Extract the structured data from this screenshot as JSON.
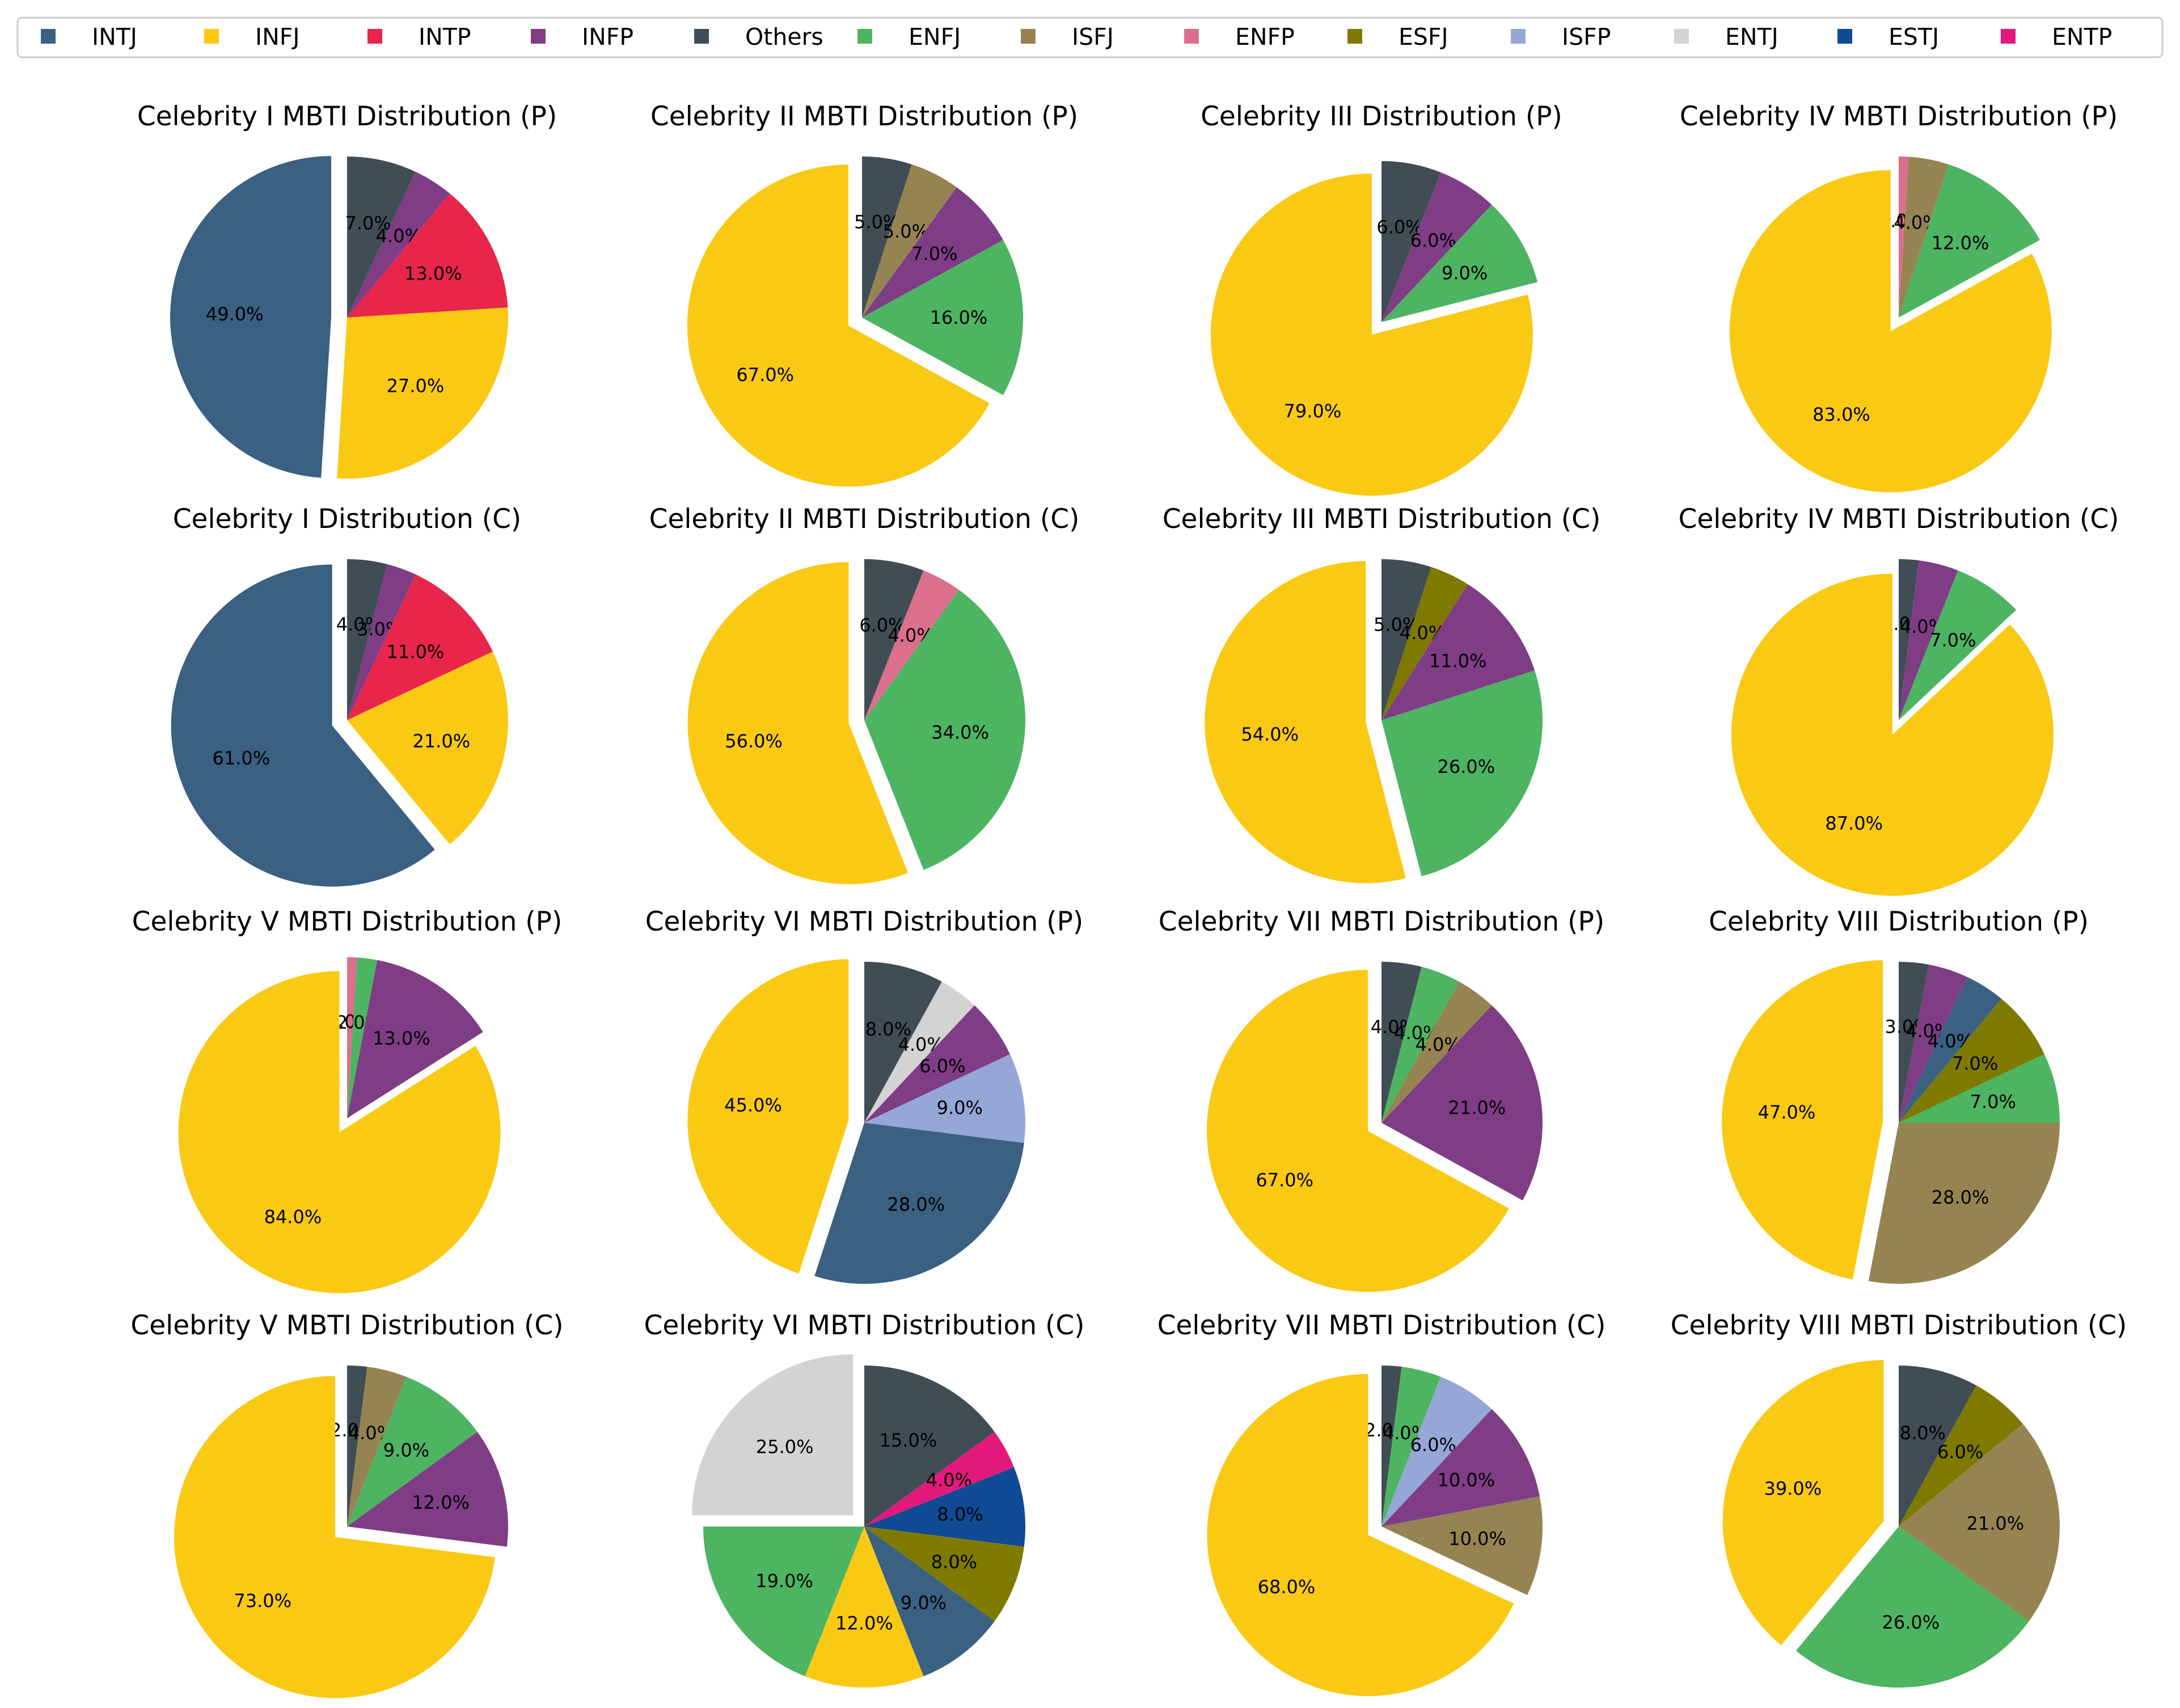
{
  "legend": [
    {
      "label": "INTJ",
      "color": "#3a6082"
    },
    {
      "label": "INFJ",
      "color": "#f9c914"
    },
    {
      "label": "INTP",
      "color": "#e8254a"
    },
    {
      "label": "INFP",
      "color": "#7f3d86"
    },
    {
      "label": "Others",
      "color": "#414d55"
    },
    {
      "label": "ENFJ",
      "color": "#4db462"
    },
    {
      "label": "ISFJ",
      "color": "#958451"
    },
    {
      "label": "ENFP",
      "color": "#db6f8c"
    },
    {
      "label": "ESFJ",
      "color": "#7e7a00"
    },
    {
      "label": "ISFP",
      "color": "#94a7d6"
    },
    {
      "label": "ENTJ",
      "color": "#d3d3d3"
    },
    {
      "label": "ESTJ",
      "color": "#0f4a94"
    },
    {
      "label": "ENTP",
      "color": "#e3197b"
    }
  ],
  "chart_data": [
    {
      "type": "pie",
      "title": "Celebrity I MBTI Distribution (P)",
      "explode": "INTJ",
      "slices": [
        {
          "label": "Others",
          "value": 7.0
        },
        {
          "label": "INFP",
          "value": 4.0
        },
        {
          "label": "INTP",
          "value": 13.0
        },
        {
          "label": "INFJ",
          "value": 27.0
        },
        {
          "label": "INTJ",
          "value": 49.0
        }
      ]
    },
    {
      "type": "pie",
      "title": "Celebrity II MBTI Distribution (P)",
      "explode": "INFJ",
      "slices": [
        {
          "label": "Others",
          "value": 5.0
        },
        {
          "label": "ISFJ",
          "value": 5.0
        },
        {
          "label": "INFP",
          "value": 7.0
        },
        {
          "label": "ENFJ",
          "value": 16.0
        },
        {
          "label": "INFJ",
          "value": 67.0
        }
      ]
    },
    {
      "type": "pie",
      "title": "Celebrity III Distribution (P)",
      "explode": "INFJ",
      "slices": [
        {
          "label": "Others",
          "value": 6.0
        },
        {
          "label": "INFP",
          "value": 6.0
        },
        {
          "label": "ENFJ",
          "value": 9.0
        },
        {
          "label": "INFJ",
          "value": 79.0
        }
      ]
    },
    {
      "type": "pie",
      "title": "Celebrity IV MBTI Distribution (P)",
      "explode": "INFJ",
      "slices": [
        {
          "label": "ENFP",
          "value": 1.0
        },
        {
          "label": "ISFJ",
          "value": 4.0
        },
        {
          "label": "ENFJ",
          "value": 12.0
        },
        {
          "label": "INFJ",
          "value": 83.0
        }
      ]
    },
    {
      "type": "pie",
      "title": "Celebrity I Distribution (C)",
      "explode": "INTJ",
      "slices": [
        {
          "label": "Others",
          "value": 4.0
        },
        {
          "label": "INFP",
          "value": 3.0
        },
        {
          "label": "INTP",
          "value": 11.0
        },
        {
          "label": "INFJ",
          "value": 21.0
        },
        {
          "label": "INTJ",
          "value": 61.0
        }
      ]
    },
    {
      "type": "pie",
      "title": "Celebrity II MBTI Distribution (C)",
      "explode": "INFJ",
      "slices": [
        {
          "label": "Others",
          "value": 6.0
        },
        {
          "label": "ENFP",
          "value": 4.0
        },
        {
          "label": "ENFJ",
          "value": 34.0
        },
        {
          "label": "INFJ",
          "value": 56.0
        }
      ]
    },
    {
      "type": "pie",
      "title": "Celebrity III MBTI Distribution (C)",
      "explode": "INFJ",
      "slices": [
        {
          "label": "Others",
          "value": 5.0
        },
        {
          "label": "ESFJ",
          "value": 4.0
        },
        {
          "label": "INFP",
          "value": 11.0
        },
        {
          "label": "ENFJ",
          "value": 26.0
        },
        {
          "label": "INFJ",
          "value": 54.0
        }
      ]
    },
    {
      "type": "pie",
      "title": "Celebrity IV MBTI Distribution (C)",
      "explode": "INFJ",
      "slices": [
        {
          "label": "Others",
          "value": 2.0
        },
        {
          "label": "INFP",
          "value": 4.0
        },
        {
          "label": "ENFJ",
          "value": 7.0
        },
        {
          "label": "INFJ",
          "value": 87.0
        }
      ]
    },
    {
      "type": "pie",
      "title": "Celebrity V MBTI Distribution (P)",
      "explode": "INFJ",
      "slices": [
        {
          "label": "ENFP",
          "value": 1.0
        },
        {
          "label": "ENFJ",
          "value": 2.0
        },
        {
          "label": "INFP",
          "value": 13.0
        },
        {
          "label": "INFJ",
          "value": 84.0
        }
      ]
    },
    {
      "type": "pie",
      "title": "Celebrity VI MBTI Distribution (P)",
      "explode": "INFJ",
      "slices": [
        {
          "label": "Others",
          "value": 8.0
        },
        {
          "label": "ENTJ",
          "value": 4.0
        },
        {
          "label": "INFP",
          "value": 6.0
        },
        {
          "label": "ISFP",
          "value": 9.0
        },
        {
          "label": "INTJ",
          "value": 28.0
        },
        {
          "label": "INFJ",
          "value": 45.0
        }
      ]
    },
    {
      "type": "pie",
      "title": "Celebrity VII MBTI Distribution (P)",
      "explode": "INFJ",
      "slices": [
        {
          "label": "Others",
          "value": 4.0
        },
        {
          "label": "ENFJ",
          "value": 4.0
        },
        {
          "label": "ISFJ",
          "value": 4.0
        },
        {
          "label": "INFP",
          "value": 21.0
        },
        {
          "label": "INFJ",
          "value": 67.0
        }
      ]
    },
    {
      "type": "pie",
      "title": "Celebrity VIII Distribution (P)",
      "explode": "INFJ",
      "slices": [
        {
          "label": "Others",
          "value": 3.0
        },
        {
          "label": "INFP",
          "value": 4.0
        },
        {
          "label": "INTJ",
          "value": 4.0
        },
        {
          "label": "ESFJ",
          "value": 7.0
        },
        {
          "label": "ENFJ",
          "value": 7.0
        },
        {
          "label": "ISFJ",
          "value": 28.0
        },
        {
          "label": "INFJ",
          "value": 47.0
        }
      ]
    },
    {
      "type": "pie",
      "title": "Celebrity V MBTI Distribution (C)",
      "explode": "INFJ",
      "slices": [
        {
          "label": "Others",
          "value": 2.0
        },
        {
          "label": "ISFJ",
          "value": 4.0
        },
        {
          "label": "ENFJ",
          "value": 9.0
        },
        {
          "label": "INFP",
          "value": 12.0
        },
        {
          "label": "INFJ",
          "value": 73.0
        }
      ]
    },
    {
      "type": "pie",
      "title": "Celebrity VI MBTI Distribution (C)",
      "explode": "ENTJ",
      "slices": [
        {
          "label": "Others",
          "value": 15.0
        },
        {
          "label": "ENTP",
          "value": 4.0
        },
        {
          "label": "ESTJ",
          "value": 8.0
        },
        {
          "label": "ESFJ",
          "value": 8.0
        },
        {
          "label": "INTJ",
          "value": 9.0
        },
        {
          "label": "INFJ",
          "value": 12.0
        },
        {
          "label": "ENFJ",
          "value": 19.0
        },
        {
          "label": "ENTJ",
          "value": 25.0
        }
      ]
    },
    {
      "type": "pie",
      "title": "Celebrity VII MBTI Distribution (C)",
      "explode": "INFJ",
      "slices": [
        {
          "label": "Others",
          "value": 2.0
        },
        {
          "label": "ENFJ",
          "value": 4.0
        },
        {
          "label": "ISFP",
          "value": 6.0
        },
        {
          "label": "INFP",
          "value": 10.0
        },
        {
          "label": "ISFJ",
          "value": 10.0
        },
        {
          "label": "INFJ",
          "value": 68.0
        }
      ]
    },
    {
      "type": "pie",
      "title": "Celebrity VIII MBTI Distribution (C)",
      "explode": "INFJ",
      "slices": [
        {
          "label": "Others",
          "value": 8.0
        },
        {
          "label": "ESFJ",
          "value": 6.0
        },
        {
          "label": "ISFJ",
          "value": 21.0
        },
        {
          "label": "ENFJ",
          "value": 26.0
        },
        {
          "label": "INFJ",
          "value": 39.0
        }
      ]
    }
  ]
}
